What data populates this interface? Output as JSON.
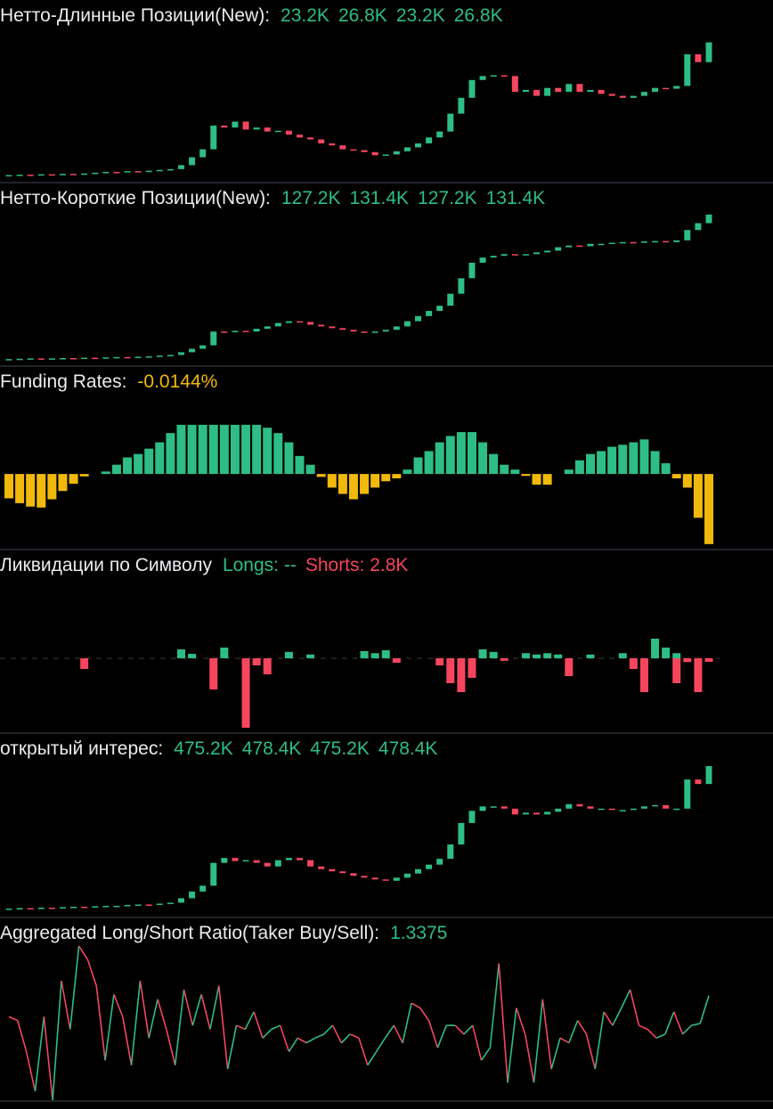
{
  "chart_data": [
    {
      "type": "candlestick",
      "title": "Нетто-Длинные Позиции(New):",
      "legend": [
        {
          "text": "23.2K",
          "color": "#2ebd85"
        },
        {
          "text": "26.8K",
          "color": "#2ebd85"
        },
        {
          "text": "23.2K",
          "color": "#2ebd85"
        },
        {
          "text": "26.8K",
          "color": "#2ebd85"
        }
      ],
      "up_color": "#2ebd85",
      "down_color": "#f6465d",
      "ylim": [
        23.1,
        26.9
      ],
      "closes": [
        23.2,
        23.21,
        23.2,
        23.22,
        23.21,
        23.23,
        23.22,
        23.24,
        23.26,
        23.28,
        23.27,
        23.3,
        23.29,
        23.31,
        23.33,
        23.35,
        23.45,
        23.65,
        23.85,
        24.45,
        24.4,
        24.55,
        24.35,
        24.4,
        24.3,
        24.32,
        24.22,
        24.15,
        24.1,
        24.0,
        23.95,
        23.85,
        23.83,
        23.78,
        23.7,
        23.72,
        23.8,
        23.9,
        24.0,
        24.15,
        24.3,
        24.75,
        25.15,
        25.6,
        25.7,
        25.72,
        25.7,
        25.3,
        25.35,
        25.2,
        25.4,
        25.3,
        25.5,
        25.3,
        25.35,
        25.25,
        25.2,
        25.15,
        25.2,
        25.3,
        25.4,
        25.38,
        25.45,
        26.25,
        26.05,
        26.55
      ]
    },
    {
      "type": "candlestick",
      "title": "Нетто-Короткие Позиции(New):",
      "legend": [
        {
          "text": "127.2K",
          "color": "#2ebd85"
        },
        {
          "text": "131.4K",
          "color": "#2ebd85"
        },
        {
          "text": "127.2K",
          "color": "#2ebd85"
        },
        {
          "text": "131.4K",
          "color": "#2ebd85"
        }
      ],
      "up_color": "#2ebd85",
      "down_color": "#f6465d",
      "ylim": [
        127.1,
        131.5
      ],
      "closes": [
        127.2,
        127.21,
        127.22,
        127.21,
        127.22,
        127.23,
        127.22,
        127.24,
        127.23,
        127.25,
        127.26,
        127.25,
        127.27,
        127.28,
        127.3,
        127.32,
        127.4,
        127.5,
        127.6,
        128.0,
        127.98,
        128.02,
        128.0,
        128.08,
        128.15,
        128.25,
        128.3,
        128.28,
        128.2,
        128.15,
        128.1,
        128.05,
        128.0,
        127.98,
        128.0,
        128.05,
        128.15,
        128.3,
        128.45,
        128.6,
        128.75,
        129.1,
        129.55,
        130.0,
        130.15,
        130.2,
        130.25,
        130.22,
        130.25,
        130.3,
        130.35,
        130.45,
        130.5,
        130.48,
        130.55,
        130.55,
        130.58,
        130.6,
        130.58,
        130.62,
        130.63,
        130.6,
        130.65,
        130.95,
        131.15,
        131.4
      ]
    },
    {
      "type": "bar",
      "title": "Funding Rates:",
      "legend": [
        {
          "text": "-0.0144%",
          "color": "#f0b90b"
        }
      ],
      "pos_color": "#2ebd85",
      "neg_color": "#f0b90b",
      "ylim": [
        -0.0148,
        0.0163
      ],
      "values": [
        -0.005,
        -0.006,
        -0.0067,
        -0.0069,
        -0.0052,
        -0.0035,
        -0.002,
        -0.0005,
        0.0,
        0.0005,
        0.0019,
        0.0034,
        0.0041,
        0.0052,
        0.0065,
        0.0084,
        0.0101,
        0.0101,
        0.0101,
        0.0101,
        0.0101,
        0.0101,
        0.0101,
        0.0101,
        0.0095,
        0.0084,
        0.0065,
        0.0037,
        0.0019,
        -0.0006,
        -0.0028,
        -0.0041,
        -0.0052,
        -0.0041,
        -0.0028,
        -0.0015,
        -0.0009,
        0.0009,
        0.0034,
        0.0047,
        0.0065,
        0.0078,
        0.0086,
        0.0086,
        0.0065,
        0.0041,
        0.0019,
        0.0009,
        -0.0004,
        -0.0022,
        -0.0022,
        0.0,
        0.0009,
        0.0028,
        0.0041,
        0.0047,
        0.0056,
        0.006,
        0.0065,
        0.0071,
        0.0047,
        0.0022,
        -0.0009,
        -0.0028,
        -0.009,
        -0.0144
      ]
    },
    {
      "type": "mirror_bar",
      "title": "Ликвидации по Символу",
      "legend": [
        {
          "text": "Longs: --",
          "color": "#2ebd85"
        },
        {
          "text": "Shorts: 2.8K",
          "color": "#f6465d"
        }
      ],
      "ylim": [
        -56,
        63
      ],
      "series": [
        {
          "color": "#2ebd85",
          "values": [
            0,
            0,
            0,
            0,
            0,
            0,
            0,
            0,
            0,
            0,
            0,
            0,
            0,
            0,
            0,
            0,
            7,
            3.5,
            0,
            0,
            8.4,
            0,
            0,
            0,
            0,
            0,
            5,
            0,
            3,
            0,
            0,
            0,
            0,
            5.6,
            4,
            6.3,
            0,
            0,
            0,
            0,
            0,
            0,
            0,
            0,
            7,
            5,
            0,
            0,
            4,
            3,
            4,
            3,
            0,
            0,
            3,
            0,
            0,
            4,
            0,
            0,
            15.4,
            8.4,
            4,
            0,
            0,
            0
          ]
        },
        {
          "color": "#f6465d",
          "values": [
            0,
            0,
            0,
            0,
            0,
            0,
            0,
            8.4,
            0,
            0,
            0,
            0,
            0,
            0,
            0,
            0,
            0,
            0,
            0,
            24.5,
            0,
            0,
            54.6,
            5.6,
            12.6,
            0,
            0,
            0,
            0,
            0,
            0,
            0,
            0,
            0,
            0,
            0,
            3.5,
            0,
            0,
            0,
            5.6,
            19.6,
            26.6,
            15.4,
            0,
            0,
            2,
            0,
            0,
            0,
            0,
            0,
            14,
            0,
            0,
            0,
            0,
            0,
            8.4,
            26.6,
            0,
            0,
            19.6,
            3,
            26.6,
            2.8
          ]
        }
      ]
    },
    {
      "type": "candlestick",
      "title": "открытый интерес:",
      "legend": [
        {
          "text": "475.2K",
          "color": "#2ebd85"
        },
        {
          "text": "478.4K",
          "color": "#2ebd85"
        },
        {
          "text": "475.2K",
          "color": "#2ebd85"
        },
        {
          "text": "478.4K",
          "color": "#2ebd85"
        }
      ],
      "up_color": "#2ebd85",
      "down_color": "#f6465d",
      "ylim": [
        475.1,
        478.5
      ],
      "closes": [
        475.22,
        475.23,
        475.22,
        475.24,
        475.23,
        475.25,
        475.26,
        475.25,
        475.27,
        475.28,
        475.28,
        475.3,
        475.31,
        475.3,
        475.33,
        475.35,
        475.45,
        475.6,
        475.73,
        476.24,
        476.35,
        476.28,
        476.3,
        476.24,
        476.16,
        476.3,
        476.35,
        476.3,
        476.16,
        476.1,
        476.05,
        476.01,
        475.95,
        475.91,
        475.87,
        475.84,
        475.91,
        476.0,
        476.1,
        476.2,
        476.33,
        476.65,
        477.13,
        477.4,
        477.5,
        477.5,
        477.45,
        477.32,
        477.36,
        477.32,
        477.38,
        477.45,
        477.55,
        477.5,
        477.45,
        477.45,
        477.42,
        477.42,
        477.45,
        477.5,
        477.53,
        477.45,
        477.45,
        478.1,
        478.0,
        478.4
      ]
    },
    {
      "type": "line",
      "title": "Aggregated Long/Short Ratio(Taker Buy/Sell):",
      "legend": [
        {
          "text": "1.3375",
          "color": "#2ebd85"
        }
      ],
      "up_color": "#2ebd85",
      "down_color": "#f6465d",
      "ylim": [
        0.25,
        1.85
      ],
      "values": [
        1.12,
        1.08,
        0.76,
        0.35,
        1.12,
        0.26,
        1.49,
        0.99,
        1.85,
        1.71,
        1.44,
        0.67,
        1.35,
        1.12,
        0.62,
        1.49,
        0.9,
        1.3,
        0.99,
        0.62,
        1.4,
        1.03,
        1.35,
        0.99,
        1.44,
        0.58,
        1.03,
        0.99,
        1.17,
        0.9,
        0.99,
        1.03,
        0.76,
        0.9,
        0.85,
        0.9,
        0.94,
        1.03,
        0.85,
        0.94,
        0.9,
        0.62,
        0.76,
        0.9,
        1.03,
        0.85,
        1.26,
        1.21,
        1.08,
        0.8,
        1.03,
        1.03,
        0.94,
        1.03,
        0.67,
        0.8,
        1.67,
        0.44,
        1.21,
        0.94,
        0.44,
        1.3,
        0.58,
        0.9,
        0.85,
        1.08,
        0.94,
        0.58,
        1.17,
        1.03,
        1.21,
        1.4,
        1.03,
        0.99,
        0.9,
        0.94,
        1.17,
        0.94,
        1.03,
        1.05,
        1.3375
      ]
    }
  ]
}
